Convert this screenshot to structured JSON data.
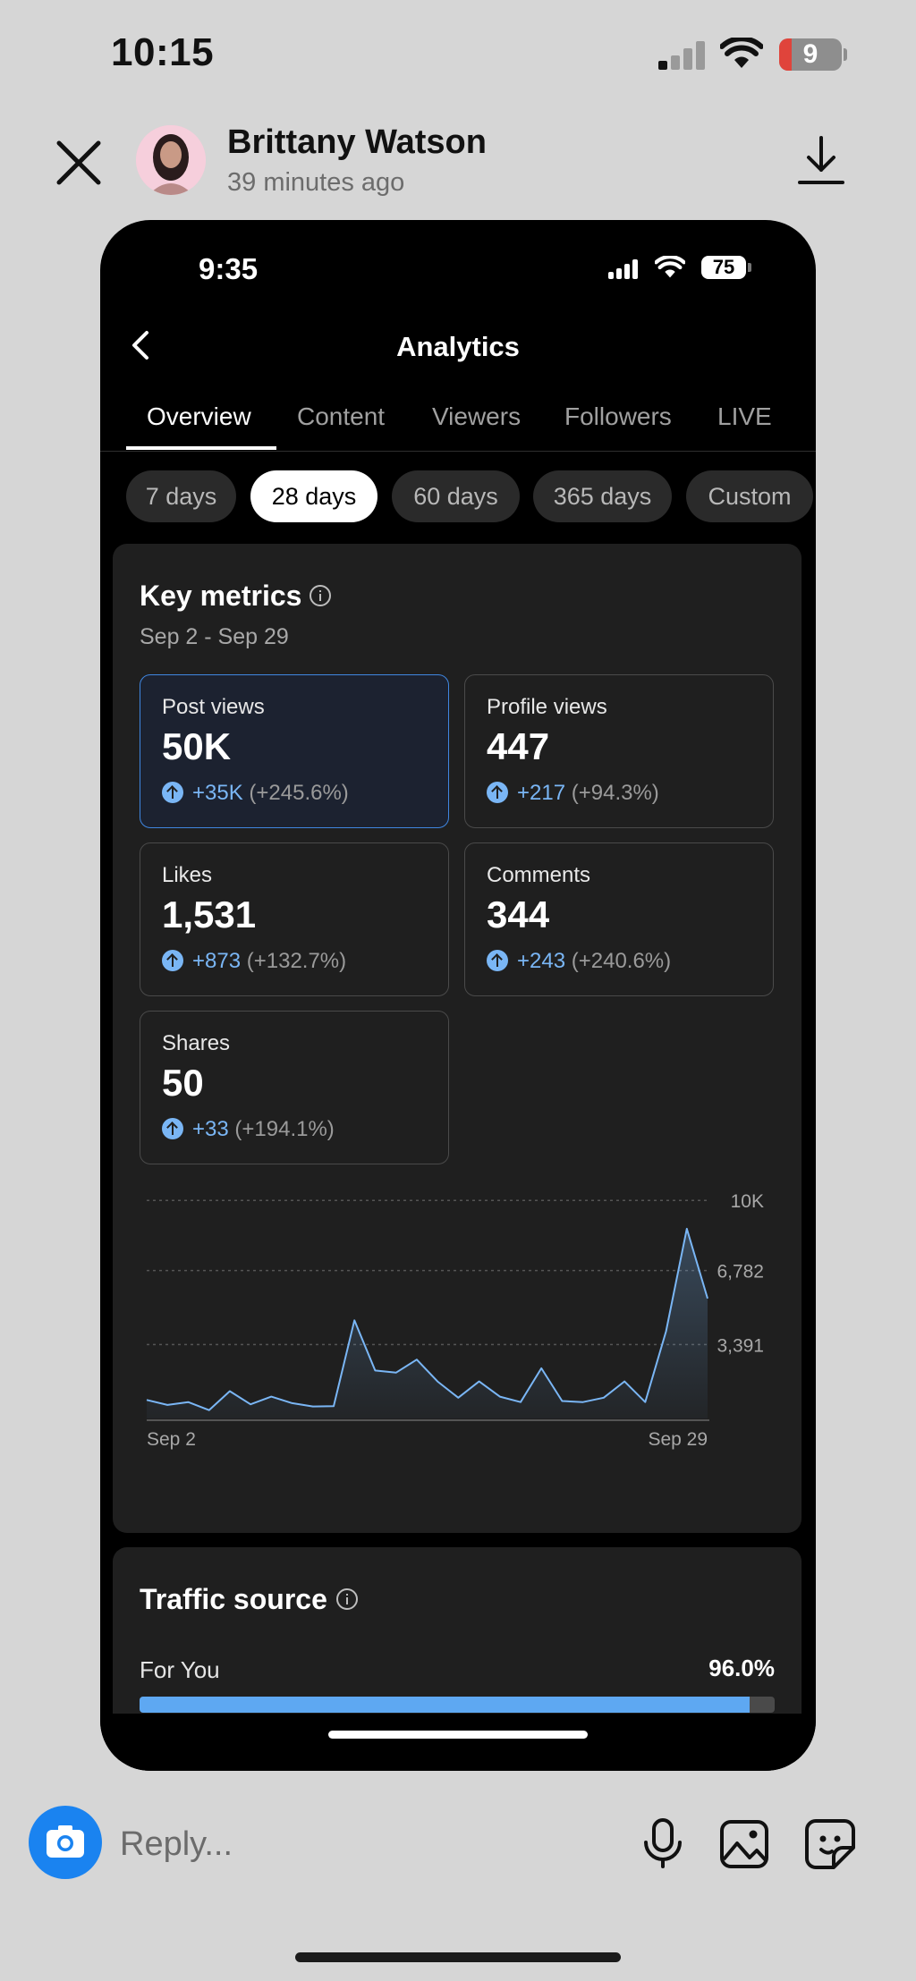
{
  "status_bar": {
    "time": "10:15",
    "battery": "9"
  },
  "header": {
    "sender_name": "Brittany Watson",
    "time_ago": "39 minutes ago"
  },
  "story": {
    "status_bar": {
      "time": "9:35",
      "battery": "75"
    },
    "title": "Analytics",
    "tabs": [
      "Overview",
      "Content",
      "Viewers",
      "Followers",
      "LIVE"
    ],
    "active_tab": "Overview",
    "ranges": [
      "7 days",
      "28 days",
      "60 days",
      "365 days",
      "Custom"
    ],
    "active_range": "28 days",
    "key_metrics": {
      "title": "Key metrics",
      "date_range": "Sep 2 - Sep 29",
      "metrics": [
        {
          "label": "Post views",
          "value": "50K",
          "delta": "+35K",
          "pct": "(+245.6%)"
        },
        {
          "label": "Profile views",
          "value": "447",
          "delta": "+217",
          "pct": "(+94.3%)"
        },
        {
          "label": "Likes",
          "value": "1,531",
          "delta": "+873",
          "pct": "(+132.7%)"
        },
        {
          "label": "Comments",
          "value": "344",
          "delta": "+243",
          "pct": "(+240.6%)"
        },
        {
          "label": "Shares",
          "value": "50",
          "delta": "+33",
          "pct": "(+194.1%)"
        }
      ]
    },
    "traffic": {
      "title": "Traffic source",
      "sources": [
        {
          "label": "For You",
          "pct": "96.0%",
          "fraction": 0.96
        }
      ]
    }
  },
  "chart_data": {
    "type": "area",
    "x_start_label": "Sep 2",
    "x_end_label": "Sep 29",
    "y_ticks": [
      "10K",
      "6,782",
      "3,391"
    ],
    "ylim": [
      0,
      10173
    ],
    "grid": true,
    "color": "#7ab6f5",
    "series": [
      {
        "values": [
          850,
          620,
          750,
          380,
          1250,
          650,
          1000,
          700,
          550,
          560,
          4500,
          2200,
          2100,
          2700,
          1700,
          950,
          1700,
          1000,
          750,
          2300,
          800,
          750,
          950,
          1700,
          750,
          4000,
          8700,
          5500
        ]
      }
    ]
  },
  "reply": {
    "placeholder": "Reply..."
  },
  "colors": {
    "accent": "#1a83f0",
    "chart_line": "#7ab6f5",
    "battery_low": "#e0443b"
  },
  "icons": [
    "close-icon",
    "download-icon",
    "camera-icon",
    "microphone-icon",
    "image-icon",
    "sticker-icon",
    "info-icon",
    "chevron-left-icon",
    "arrow-up-icon",
    "wifi-icon",
    "signal-icon"
  ]
}
